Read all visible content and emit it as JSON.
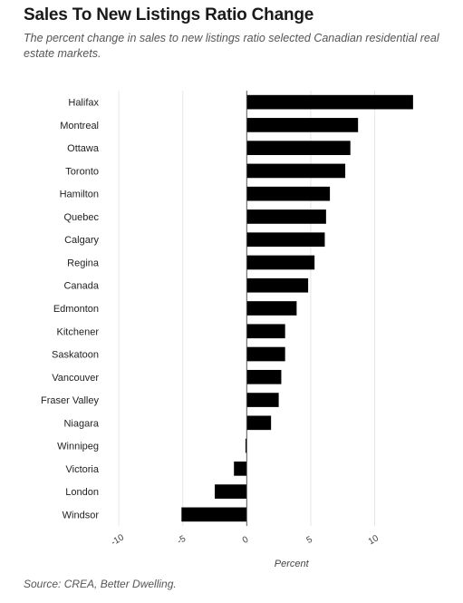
{
  "chart_data": {
    "type": "bar",
    "orientation": "horizontal",
    "title": "Sales To New Listings Ratio Change",
    "subtitle": "The percent change in sales to new listings ratio selected Canadian residential real estate markets.",
    "source": "Source: CREA, Better Dwelling.",
    "xlabel": "Percent",
    "ylabel": "",
    "categories": [
      "Halifax",
      "Montreal",
      "Ottawa",
      "Toronto",
      "Hamilton",
      "Quebec",
      "Calgary",
      "Regina",
      "Canada",
      "Edmonton",
      "Kitchener",
      "Saskatoon",
      "Vancouver",
      "Fraser Valley",
      "Niagara",
      "Winnipeg",
      "Victoria",
      "London",
      "Windsor"
    ],
    "values": [
      13.0,
      8.7,
      8.1,
      7.7,
      6.5,
      6.2,
      6.1,
      5.3,
      4.8,
      3.9,
      3.0,
      3.0,
      2.7,
      2.5,
      1.9,
      -0.1,
      -1.0,
      -2.5,
      -5.1
    ],
    "xlim": [
      -11,
      14
    ],
    "xticks": [
      -10,
      -5,
      0,
      5,
      10
    ],
    "grid": true,
    "bar_color": "#000000",
    "legend": "none"
  }
}
